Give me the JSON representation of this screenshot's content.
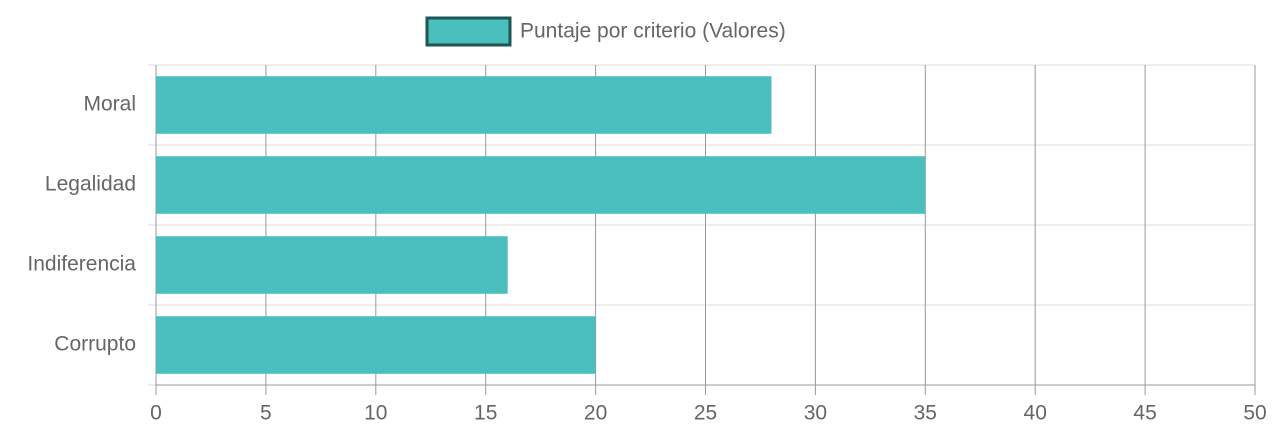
{
  "chart_data": {
    "type": "hbar",
    "categories": [
      "Moral",
      "Legalidad",
      "Indiferencia",
      "Corrupto"
    ],
    "series": [
      {
        "name": "Puntaje por criterio (Valores)",
        "color": "#4abfbd",
        "values": [
          28,
          35,
          16,
          20
        ]
      }
    ],
    "xlim": [
      0,
      50
    ],
    "xticks": [
      0,
      5,
      10,
      15,
      20,
      25,
      30,
      35,
      40,
      45,
      50
    ],
    "grid": true,
    "legend": "top"
  }
}
